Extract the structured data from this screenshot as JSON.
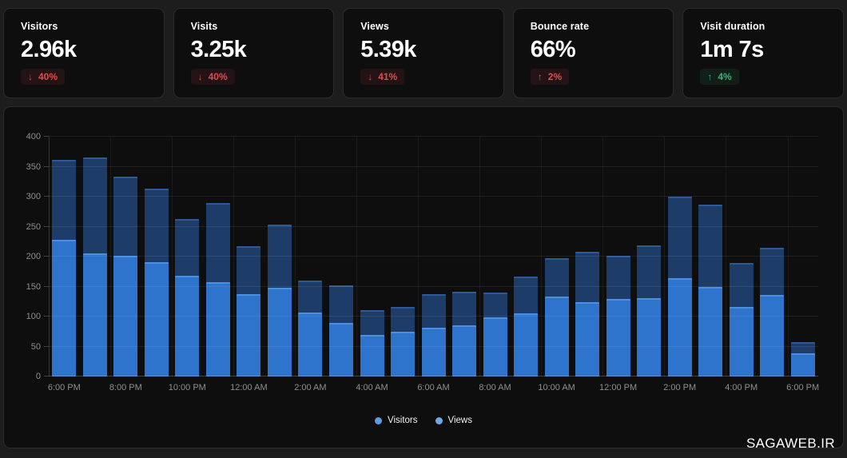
{
  "page": {
    "watermark": "SAGAWEB.IR"
  },
  "colors": {
    "page_bg": "#1d1d1d",
    "card_bg": "#0e0e0e",
    "card_border": "#2b2b2b",
    "negative": "#e5484d",
    "positive": "#3fae76",
    "axis_text": "#8f8f8f",
    "visitors_bar": "#2e74cc",
    "views_bar": "#1d3d68"
  },
  "stats": [
    {
      "label": "Visitors",
      "value": "2.96k",
      "arrow": "↓",
      "delta": "40%",
      "tone": "negative"
    },
    {
      "label": "Visits",
      "value": "3.25k",
      "arrow": "↓",
      "delta": "40%",
      "tone": "negative"
    },
    {
      "label": "Views",
      "value": "5.39k",
      "arrow": "↓",
      "delta": "41%",
      "tone": "negative"
    },
    {
      "label": "Bounce rate",
      "value": "66%",
      "arrow": "↑",
      "delta": "2%",
      "tone": "negative"
    },
    {
      "label": "Visit duration",
      "value": "1m 7s",
      "arrow": "↑",
      "delta": "4%",
      "tone": "positive"
    }
  ],
  "chart_data": {
    "type": "bar",
    "x": [
      "6:00 PM",
      "7:00 PM",
      "8:00 PM",
      "9:00 PM",
      "10:00 PM",
      "11:00 PM",
      "12:00 AM",
      "1:00 AM",
      "2:00 AM",
      "3:00 AM",
      "4:00 AM",
      "5:00 AM",
      "6:00 AM",
      "7:00 AM",
      "8:00 AM",
      "9:00 AM",
      "10:00 AM",
      "11:00 AM",
      "12:00 PM",
      "1:00 PM",
      "2:00 PM",
      "3:00 PM",
      "4:00 PM",
      "5:00 PM",
      "6:00 PM"
    ],
    "tick_labels": [
      "6:00 PM",
      "8:00 PM",
      "10:00 PM",
      "12:00 AM",
      "2:00 AM",
      "4:00 AM",
      "6:00 AM",
      "8:00 AM",
      "10:00 AM",
      "12:00 PM",
      "2:00 PM",
      "4:00 PM",
      "6:00 PM"
    ],
    "series": [
      {
        "name": "Visitors",
        "color": "#2e74cc",
        "cap_color": "#4a8fe0",
        "legend_dot": "#5b9ce6",
        "values": [
          228,
          205,
          201,
          191,
          168,
          158,
          138,
          148,
          107,
          89,
          70,
          75,
          82,
          86,
          99,
          106,
          134,
          124,
          129,
          131,
          164,
          149,
          116,
          136,
          39
        ]
      },
      {
        "name": "Views",
        "color": "#1d3d68",
        "cap_color": "#2d5a94",
        "legend_dot": "#6ea8e2",
        "values": [
          362,
          366,
          334,
          313,
          263,
          290,
          218,
          254,
          160,
          152,
          111,
          116,
          137,
          142,
          140,
          167,
          197,
          208,
          201,
          219,
          300,
          287,
          190,
          215,
          57
        ]
      }
    ],
    "ylim": [
      0,
      400
    ],
    "yticks": [
      0,
      50,
      100,
      150,
      200,
      250,
      300,
      350,
      400
    ],
    "grid": true,
    "legend": [
      "Visitors",
      "Views"
    ],
    "legend_position": "bottom-center"
  }
}
